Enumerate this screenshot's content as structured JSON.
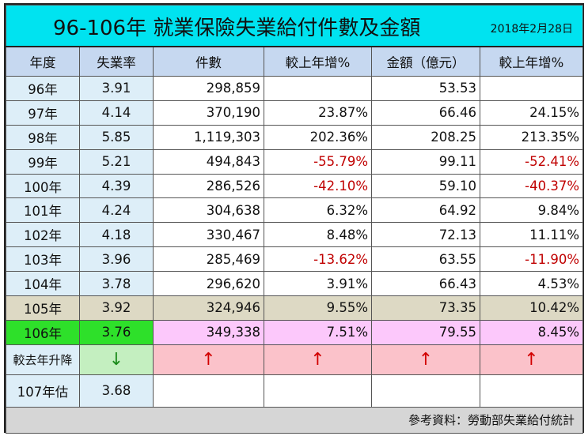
{
  "title": "96-106年 就業保險失業給付件數及金額",
  "date": "2018年2月28日",
  "chart_data": {
    "type": "table",
    "columns": [
      "年度",
      "失業率",
      "件數",
      "較上年增%",
      "金額（億元）",
      "較上年增%"
    ],
    "rows": [
      {
        "year": "96年",
        "rate": "3.91",
        "cases": "298,859",
        "cases_chg": "",
        "amount": "53.53",
        "amount_chg": ""
      },
      {
        "year": "97年",
        "rate": "4.14",
        "cases": "370,190",
        "cases_chg": "23.87%",
        "amount": "66.46",
        "amount_chg": "24.15%"
      },
      {
        "year": "98年",
        "rate": "5.85",
        "cases": "1,119,303",
        "cases_chg": "202.36%",
        "amount": "208.25",
        "amount_chg": "213.35%"
      },
      {
        "year": "99年",
        "rate": "5.21",
        "cases": "494,843",
        "cases_chg": "-55.79%",
        "amount": "99.11",
        "amount_chg": "-52.41%"
      },
      {
        "year": "100年",
        "rate": "4.39",
        "cases": "286,526",
        "cases_chg": "-42.10%",
        "amount": "59.10",
        "amount_chg": "-40.37%"
      },
      {
        "year": "101年",
        "rate": "4.24",
        "cases": "304,638",
        "cases_chg": "6.32%",
        "amount": "64.92",
        "amount_chg": "9.84%"
      },
      {
        "year": "102年",
        "rate": "4.18",
        "cases": "330,467",
        "cases_chg": "8.48%",
        "amount": "72.13",
        "amount_chg": "11.11%"
      },
      {
        "year": "103年",
        "rate": "3.96",
        "cases": "285,469",
        "cases_chg": "-13.62%",
        "amount": "63.55",
        "amount_chg": "-11.90%"
      },
      {
        "year": "104年",
        "rate": "3.78",
        "cases": "296,620",
        "cases_chg": "3.91%",
        "amount": "66.43",
        "amount_chg": "4.53%"
      },
      {
        "year": "105年",
        "rate": "3.92",
        "cases": "324,946",
        "cases_chg": "9.55%",
        "amount": "73.35",
        "amount_chg": "10.42%"
      },
      {
        "year": "106年",
        "rate": "3.76",
        "cases": "349,338",
        "cases_chg": "7.51%",
        "amount": "79.55",
        "amount_chg": "8.45%"
      }
    ],
    "trend": {
      "label": "較去年升降",
      "rate": "↓",
      "cases": "↑",
      "cases_chg": "↑",
      "amount": "↑",
      "amount_chg": "↑"
    },
    "estimate": {
      "year": "107年估",
      "rate": "3.68"
    },
    "source": "參考資料：勞動部失業給付統計"
  },
  "colors": {
    "title_bg": "#00e3f0",
    "header_bg": "#c6d8f0",
    "negative": "#c00000",
    "row_105_bg": "#ddd9c4",
    "row_106_highlight": "#2ee02a",
    "row_106_bg": "#fcc8fb",
    "up_arrow": "#d20000",
    "down_arrow": "#1a8a1a"
  }
}
